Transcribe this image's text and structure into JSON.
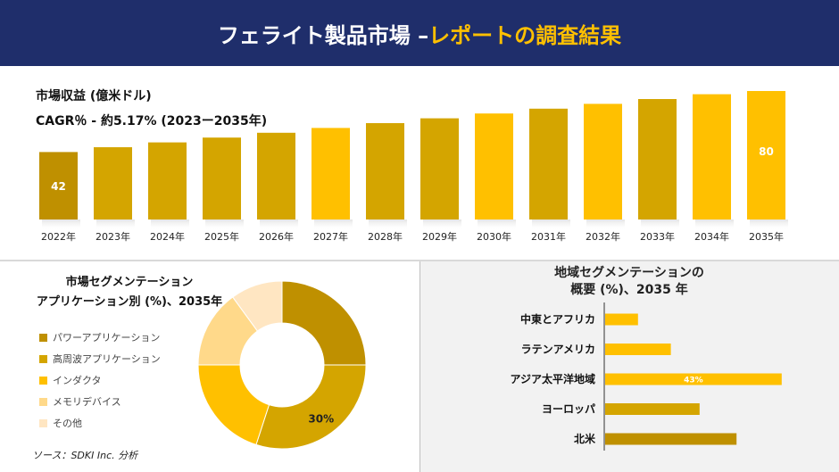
{
  "header": {
    "title_main": "フェライト製品市場 –",
    "title_accent": "レポートの調査結果"
  },
  "revenue": {
    "title": "市場収益 (億米ドル)",
    "cagr": "CAGR％ - 約5.17% (2023ー2035年)"
  },
  "segment": {
    "title_line1": "市場セグメンテーション",
    "title_line2": "アプリケーション別 (%)、2035年"
  },
  "region": {
    "title_line1": "地域セグメンテーションの",
    "title_line2": "概要 (%)、2035 年"
  },
  "source": "ソース：SDKI Inc. 分析",
  "colors": {
    "navy": "#1f2e6b",
    "gold": "#ffc000",
    "dark_gold": "#d4a500",
    "bronze": "#bf9000"
  },
  "chart_data": [
    {
      "type": "bar",
      "categories": [
        "2022年",
        "2023年",
        "2024年",
        "2025年",
        "2026年",
        "2027年",
        "2028年",
        "2029年",
        "2030年",
        "2031年",
        "2032年",
        "2033年",
        "2034年",
        "2035年"
      ],
      "values": [
        42,
        45,
        48,
        51,
        54,
        57,
        60,
        63,
        66,
        69,
        72,
        75,
        78,
        80
      ],
      "data_labels": [
        {
          "index": 0,
          "text": "42"
        },
        {
          "index": 13,
          "text": "80"
        }
      ],
      "colors": [
        "#bf9000",
        "#d4a500",
        "#d4a500",
        "#d4a500",
        "#d4a500",
        "#ffc000",
        "#d4a500",
        "#d4a500",
        "#ffc000",
        "#d4a500",
        "#ffc000",
        "#d4a500",
        "#ffc000",
        "#ffc000"
      ]
    },
    {
      "type": "pie",
      "categories": [
        "パワーアプリケーション",
        "高周波アプリケーション",
        "インダクタ",
        "メモリデバイス",
        "その他"
      ],
      "values": [
        25,
        30,
        20,
        15,
        10
      ],
      "colors": [
        "#bf9000",
        "#d4a500",
        "#ffc000",
        "#ffd98a",
        "#ffe6c2"
      ],
      "data_labels": [
        {
          "index": 1,
          "text": "30%"
        }
      ]
    },
    {
      "type": "bar",
      "orientation": "horizontal",
      "categories": [
        "中東とアフリカ",
        "ラテンアメリカ",
        "アジア太平洋地域",
        "ヨーロッパ",
        "北米"
      ],
      "values": [
        8,
        16,
        43,
        23,
        32
      ],
      "colors": [
        "#ffc000",
        "#ffc000",
        "#ffc000",
        "#d4a500",
        "#bf9000"
      ],
      "data_labels": [
        {
          "index": 2,
          "text": "43%"
        }
      ]
    }
  ]
}
